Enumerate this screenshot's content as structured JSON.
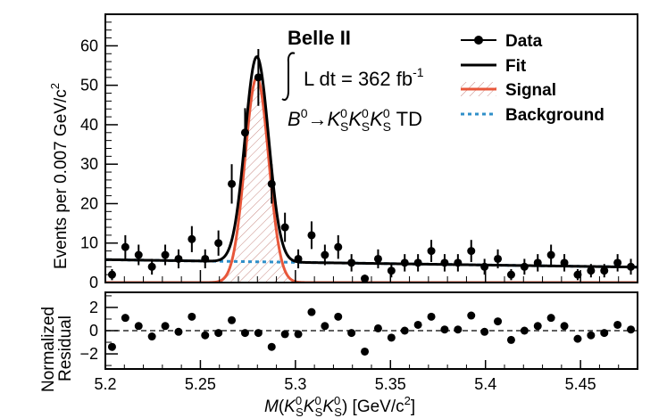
{
  "chart_data": [
    {
      "type": "scatter",
      "panel": "main",
      "title": "",
      "xlabel": "M(K_S^0 K_S^0 K_S^0) [GeV/c^2]",
      "ylabel": "Events per 0.007 GeV/c^2",
      "xlim": [
        5.2,
        5.48
      ],
      "ylim": [
        0,
        68
      ],
      "y_ticks": [
        "0",
        "10",
        "20",
        "30",
        "40",
        "50",
        "60"
      ],
      "experiment": "Belle II",
      "luminosity_text": "L dt = 362 fb",
      "luminosity_exp": "-1",
      "decay_text": "B0 → KS0 KS0 KS0 TD",
      "legend": {
        "position": "top-right",
        "data_label": "Data",
        "fit_label": "Fit",
        "signal_label": "Signal",
        "background_label": "Background"
      },
      "series": [
        {
          "name": "Data",
          "x": [
            5.2035,
            5.2105,
            5.2175,
            5.2245,
            5.2315,
            5.2385,
            5.2455,
            5.2525,
            5.2595,
            5.2665,
            5.2735,
            5.2805,
            5.2875,
            5.2945,
            5.3015,
            5.3085,
            5.3155,
            5.3225,
            5.3295,
            5.3365,
            5.3435,
            5.3505,
            5.3575,
            5.3645,
            5.3715,
            5.3785,
            5.3855,
            5.3925,
            5.3995,
            5.4065,
            5.4135,
            5.4205,
            5.4275,
            5.4345,
            5.4415,
            5.4485,
            5.4555,
            5.4625,
            5.4695,
            5.4765
          ],
          "y": [
            2,
            9,
            7,
            4,
            7,
            6,
            11,
            6,
            10,
            25,
            38,
            52,
            25,
            14,
            6,
            12,
            7,
            9,
            5,
            1,
            6,
            3,
            5,
            5,
            8,
            5,
            5,
            8,
            4,
            6,
            2,
            4,
            5,
            7,
            5,
            2,
            3,
            3,
            5,
            4
          ],
          "err": [
            1.4,
            3.0,
            2.6,
            2.0,
            2.6,
            2.4,
            3.3,
            2.4,
            3.2,
            5.0,
            6.2,
            7.2,
            5.0,
            3.7,
            2.4,
            3.5,
            2.6,
            3.0,
            2.2,
            1.0,
            2.4,
            1.7,
            2.2,
            2.2,
            2.8,
            2.2,
            2.2,
            2.8,
            2.0,
            2.4,
            1.4,
            2.0,
            2.2,
            2.6,
            2.2,
            1.4,
            1.7,
            1.7,
            2.2,
            2.0
          ]
        },
        {
          "name": "Fit",
          "function": "background + signal",
          "color": "#000000"
        },
        {
          "name": "Signal",
          "function": "gaussian",
          "mean": 5.2797,
          "sigma": 0.0062,
          "peak": 52,
          "color": "#e8573a"
        },
        {
          "name": "Background",
          "function": "linear",
          "y_at_xmin": 5.8,
          "y_at_xmax": 3.9,
          "color": "#2f8fc9"
        }
      ]
    },
    {
      "type": "scatter",
      "panel": "residual",
      "xlabel": "M(K_S^0 K_S^0 K_S^0) [GeV/c^2]",
      "ylabel": "Normalized Residual",
      "xlim": [
        5.2,
        5.48
      ],
      "ylim": [
        -3.3,
        3.3
      ],
      "y_ticks": [
        "−2",
        "0",
        "2"
      ],
      "x_ticks": [
        "5.2",
        "5.25",
        "5.3",
        "5.35",
        "5.4",
        "5.45"
      ],
      "x": [
        5.2035,
        5.2105,
        5.2175,
        5.2245,
        5.2315,
        5.2385,
        5.2455,
        5.2525,
        5.2595,
        5.2665,
        5.2735,
        5.2805,
        5.2875,
        5.2945,
        5.3015,
        5.3085,
        5.3155,
        5.3225,
        5.3295,
        5.3365,
        5.3435,
        5.3505,
        5.3575,
        5.3645,
        5.3715,
        5.3785,
        5.3855,
        5.3925,
        5.3995,
        5.4065,
        5.4135,
        5.4205,
        5.4275,
        5.4345,
        5.4415,
        5.4485,
        5.4555,
        5.4625,
        5.4695,
        5.4765
      ],
      "y": [
        -1.4,
        1.1,
        0.4,
        -0.5,
        0.4,
        -0.1,
        1.2,
        -0.4,
        -0.2,
        0.9,
        -0.2,
        -0.2,
        -1.4,
        -0.3,
        -0.3,
        1.6,
        0.4,
        1.2,
        -0.2,
        -1.8,
        0.2,
        -0.6,
        0.0,
        0.5,
        1.2,
        0.1,
        0.1,
        1.3,
        -0.1,
        0.8,
        -0.8,
        0.0,
        0.4,
        1.1,
        0.4,
        -0.7,
        -0.4,
        -0.2,
        0.5,
        0.1
      ]
    }
  ]
}
